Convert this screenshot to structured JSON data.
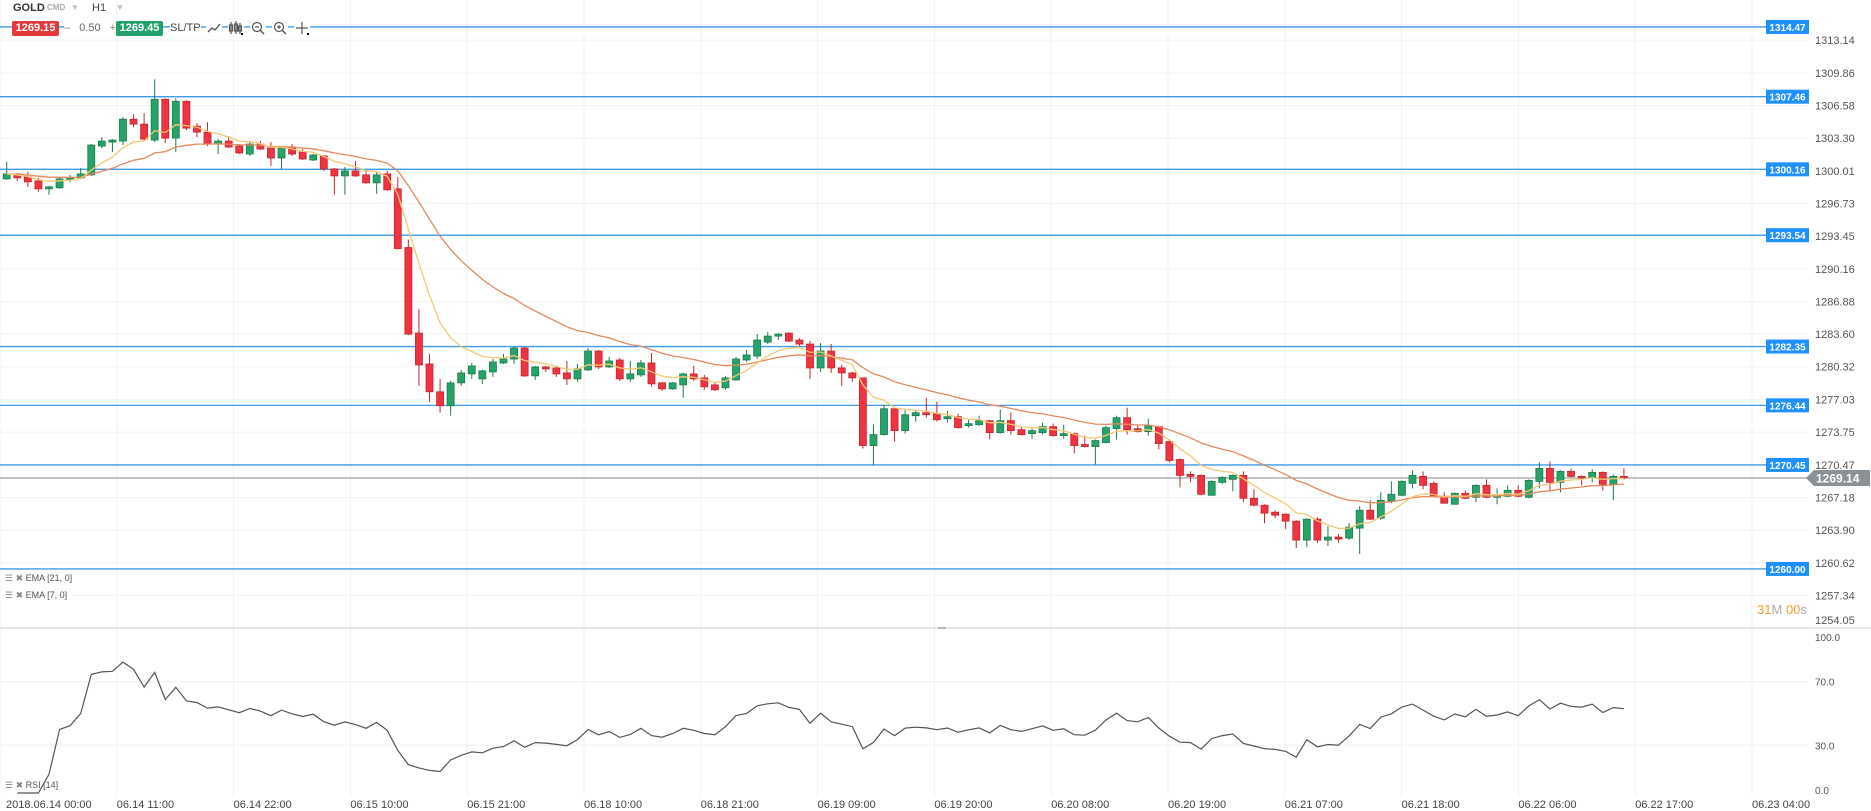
{
  "toolbar": {
    "symbol": "GOLD",
    "instrument_type": "CMD",
    "timeframe": "H1",
    "bid": "1269.15",
    "spread_minus": "–",
    "spread": "0.50",
    "spread_plus": "+",
    "ask": "1269.45",
    "sltp": "SL/TP",
    "icons": [
      "line-chart-icon",
      "candlestick-icon",
      "zoom-out-icon",
      "zoom-in-icon",
      "crosshair-icon"
    ]
  },
  "indicators": {
    "ema_slow": "EMA [21, 0]",
    "ema_fast": "EMA [7, 0]",
    "rsi": "RSI [14]"
  },
  "countdown": {
    "minutes": "31",
    "minutes_unit": "M",
    "seconds": "00",
    "seconds_unit": "s"
  },
  "colors": {
    "bull": "#26a369",
    "bear": "#ef3340",
    "ema_fast": "#f7c873",
    "ema_slow": "#e38a5e",
    "price_line": "#3d9be9",
    "price_tag": "#1e90ff",
    "current_price": "#8a9197",
    "rsi": "#555555",
    "countdown": "#f0a030"
  },
  "chart_data": {
    "type": "candlestick",
    "symbol": "GOLD",
    "timeframe": "H1",
    "ohlc_format": [
      "open",
      "high",
      "low",
      "close"
    ],
    "candles": [
      [
        1299.2,
        1300.9,
        1299.1,
        1299.7
      ],
      [
        1299.7,
        1299.8,
        1299.0,
        1299.3
      ],
      [
        1299.4,
        1299.9,
        1298.4,
        1298.9
      ],
      [
        1299.0,
        1299.3,
        1297.9,
        1298.2
      ],
      [
        1298.2,
        1298.5,
        1297.6,
        1298.4
      ],
      [
        1298.3,
        1299.4,
        1298.2,
        1299.2
      ],
      [
        1299.2,
        1299.6,
        1298.9,
        1299.3
      ],
      [
        1299.3,
        1300.3,
        1299.2,
        1299.7
      ],
      [
        1299.6,
        1302.7,
        1299.5,
        1302.6
      ],
      [
        1302.5,
        1303.4,
        1302.3,
        1303.0
      ],
      [
        1302.9,
        1303.2,
        1301.9,
        1303.1
      ],
      [
        1303.0,
        1305.4,
        1302.6,
        1305.2
      ],
      [
        1305.2,
        1305.7,
        1304.4,
        1304.7
      ],
      [
        1304.7,
        1305.8,
        1303.1,
        1303.2
      ],
      [
        1303.1,
        1309.2,
        1302.9,
        1307.2
      ],
      [
        1307.2,
        1307.3,
        1302.8,
        1303.3
      ],
      [
        1303.3,
        1307.3,
        1301.9,
        1307.0
      ],
      [
        1307.0,
        1307.1,
        1304.1,
        1304.3
      ],
      [
        1304.5,
        1304.8,
        1303.4,
        1303.9
      ],
      [
        1303.9,
        1304.9,
        1302.5,
        1302.7
      ],
      [
        1302.7,
        1303.2,
        1301.7,
        1303.0
      ],
      [
        1303.0,
        1303.5,
        1302.3,
        1302.4
      ],
      [
        1302.5,
        1302.7,
        1301.7,
        1301.8
      ],
      [
        1301.7,
        1302.9,
        1301.5,
        1302.7
      ],
      [
        1302.7,
        1303.0,
        1302.1,
        1302.2
      ],
      [
        1302.3,
        1302.9,
        1300.5,
        1301.3
      ],
      [
        1301.3,
        1302.5,
        1300.2,
        1302.4
      ],
      [
        1302.4,
        1302.7,
        1301.5,
        1301.7
      ],
      [
        1301.9,
        1302.2,
        1301.1,
        1301.2
      ],
      [
        1301.1,
        1301.7,
        1301.0,
        1301.6
      ],
      [
        1301.5,
        1301.6,
        1300.0,
        1300.2
      ],
      [
        1300.2,
        1300.3,
        1297.6,
        1299.5
      ],
      [
        1299.5,
        1300.4,
        1297.6,
        1300.0
      ],
      [
        1300.0,
        1301.0,
        1299.4,
        1299.5
      ],
      [
        1299.6,
        1300.1,
        1298.7,
        1298.8
      ],
      [
        1298.8,
        1299.9,
        1297.7,
        1299.6
      ],
      [
        1299.7,
        1300.0,
        1298.0,
        1298.1
      ],
      [
        1298.2,
        1299.4,
        1292.1,
        1292.2
      ],
      [
        1292.3,
        1293.1,
        1283.5,
        1283.6
      ],
      [
        1283.7,
        1286.1,
        1278.4,
        1280.5
      ],
      [
        1280.6,
        1281.6,
        1276.8,
        1277.8
      ],
      [
        1277.8,
        1279.1,
        1275.7,
        1276.4
      ],
      [
        1276.4,
        1278.9,
        1275.4,
        1278.7
      ],
      [
        1278.7,
        1280.0,
        1278.4,
        1279.7
      ],
      [
        1279.6,
        1280.7,
        1279.1,
        1280.4
      ],
      [
        1279.1,
        1280.0,
        1278.6,
        1279.9
      ],
      [
        1279.8,
        1281.1,
        1279.3,
        1280.8
      ],
      [
        1280.7,
        1281.6,
        1280.6,
        1281.1
      ],
      [
        1281.1,
        1282.3,
        1280.6,
        1282.2
      ],
      [
        1282.2,
        1282.3,
        1279.3,
        1279.4
      ],
      [
        1279.4,
        1280.4,
        1279.0,
        1280.3
      ],
      [
        1280.3,
        1280.4,
        1279.8,
        1280.1
      ],
      [
        1280.2,
        1280.4,
        1279.3,
        1279.6
      ],
      [
        1279.7,
        1280.9,
        1278.5,
        1279.1
      ],
      [
        1279.1,
        1280.6,
        1278.8,
        1280.1
      ],
      [
        1280.0,
        1282.2,
        1279.9,
        1281.9
      ],
      [
        1281.9,
        1282.0,
        1280.1,
        1280.3
      ],
      [
        1280.3,
        1281.3,
        1280.2,
        1280.9
      ],
      [
        1281.0,
        1281.2,
        1278.9,
        1279.1
      ],
      [
        1279.1,
        1280.9,
        1278.8,
        1279.6
      ],
      [
        1279.5,
        1281.0,
        1279.3,
        1280.7
      ],
      [
        1280.7,
        1281.7,
        1278.3,
        1278.6
      ],
      [
        1278.7,
        1278.8,
        1277.9,
        1278.1
      ],
      [
        1278.1,
        1278.8,
        1278.0,
        1278.7
      ],
      [
        1278.5,
        1279.7,
        1277.2,
        1279.6
      ],
      [
        1279.6,
        1280.4,
        1278.9,
        1279.1
      ],
      [
        1279.2,
        1279.5,
        1278.0,
        1278.3
      ],
      [
        1278.5,
        1278.7,
        1277.9,
        1278.0
      ],
      [
        1278.2,
        1279.4,
        1278.0,
        1279.2
      ],
      [
        1279.0,
        1281.3,
        1278.9,
        1281.1
      ],
      [
        1281.0,
        1282.0,
        1280.8,
        1281.5
      ],
      [
        1281.4,
        1283.6,
        1281.1,
        1283.0
      ],
      [
        1282.8,
        1283.8,
        1282.6,
        1283.4
      ],
      [
        1283.4,
        1283.7,
        1283.0,
        1283.6
      ],
      [
        1283.7,
        1283.8,
        1282.8,
        1282.9
      ],
      [
        1283.0,
        1283.2,
        1282.2,
        1282.6
      ],
      [
        1282.6,
        1282.9,
        1279.1,
        1280.2
      ],
      [
        1280.2,
        1282.7,
        1279.8,
        1281.9
      ],
      [
        1281.9,
        1282.6,
        1279.7,
        1280.2
      ],
      [
        1280.2,
        1280.5,
        1278.4,
        1279.7
      ],
      [
        1279.7,
        1279.8,
        1278.8,
        1279.2
      ],
      [
        1279.2,
        1279.2,
        1272.1,
        1272.4
      ],
      [
        1272.4,
        1274.5,
        1270.4,
        1273.5
      ],
      [
        1273.5,
        1276.5,
        1273.4,
        1276.1
      ],
      [
        1276.1,
        1276.2,
        1272.8,
        1273.9
      ],
      [
        1273.9,
        1276.1,
        1273.6,
        1275.5
      ],
      [
        1275.4,
        1276.0,
        1274.8,
        1275.7
      ],
      [
        1275.7,
        1277.2,
        1275.2,
        1275.5
      ],
      [
        1275.6,
        1276.8,
        1274.8,
        1275.0
      ],
      [
        1275.1,
        1275.9,
        1274.7,
        1275.3
      ],
      [
        1275.3,
        1275.6,
        1274.1,
        1274.2
      ],
      [
        1274.4,
        1275.1,
        1274.2,
        1274.6
      ],
      [
        1274.5,
        1275.4,
        1274.4,
        1274.9
      ],
      [
        1274.9,
        1275.0,
        1273.0,
        1273.7
      ],
      [
        1273.7,
        1276.0,
        1273.6,
        1274.9
      ],
      [
        1274.9,
        1275.7,
        1273.5,
        1273.9
      ],
      [
        1274.0,
        1274.3,
        1273.4,
        1273.5
      ],
      [
        1273.6,
        1274.2,
        1273.1,
        1273.9
      ],
      [
        1273.7,
        1274.7,
        1273.5,
        1274.3
      ],
      [
        1274.3,
        1274.6,
        1273.3,
        1273.4
      ],
      [
        1273.4,
        1274.5,
        1273.1,
        1273.6
      ],
      [
        1273.6,
        1273.7,
        1271.6,
        1272.4
      ],
      [
        1272.5,
        1273.4,
        1272.2,
        1272.3
      ],
      [
        1272.3,
        1273.0,
        1270.5,
        1272.9
      ],
      [
        1272.7,
        1274.4,
        1272.6,
        1274.2
      ],
      [
        1274.1,
        1275.4,
        1273.0,
        1275.2
      ],
      [
        1275.2,
        1276.2,
        1273.5,
        1274.0
      ],
      [
        1274.1,
        1274.5,
        1273.7,
        1273.8
      ],
      [
        1273.8,
        1275.1,
        1273.4,
        1274.4
      ],
      [
        1274.3,
        1274.4,
        1272.0,
        1272.6
      ],
      [
        1272.8,
        1273.0,
        1270.7,
        1270.9
      ],
      [
        1271.0,
        1271.1,
        1268.2,
        1269.4
      ],
      [
        1269.5,
        1269.8,
        1268.7,
        1269.3
      ],
      [
        1269.4,
        1269.5,
        1267.4,
        1267.5
      ],
      [
        1267.4,
        1268.9,
        1267.4,
        1268.8
      ],
      [
        1268.7,
        1269.3,
        1268.5,
        1269.2
      ],
      [
        1269.0,
        1269.5,
        1267.8,
        1269.4
      ],
      [
        1269.4,
        1269.8,
        1266.7,
        1267.1
      ],
      [
        1267.1,
        1268.0,
        1266.3,
        1266.4
      ],
      [
        1266.4,
        1266.5,
        1264.6,
        1265.6
      ],
      [
        1265.7,
        1265.9,
        1265.1,
        1265.4
      ],
      [
        1265.5,
        1265.6,
        1264.0,
        1264.8
      ],
      [
        1264.8,
        1264.9,
        1262.1,
        1262.9
      ],
      [
        1262.9,
        1265.1,
        1262.2,
        1265.0
      ],
      [
        1265.0,
        1265.2,
        1262.6,
        1262.9
      ],
      [
        1262.9,
        1264.3,
        1262.3,
        1263.2
      ],
      [
        1263.2,
        1263.5,
        1262.6,
        1263.0
      ],
      [
        1263.1,
        1264.6,
        1262.9,
        1264.2
      ],
      [
        1264.1,
        1266.3,
        1261.5,
        1265.9
      ],
      [
        1265.9,
        1266.9,
        1264.9,
        1265.0
      ],
      [
        1265.1,
        1267.7,
        1264.9,
        1266.9
      ],
      [
        1266.8,
        1268.8,
        1266.6,
        1267.5
      ],
      [
        1267.4,
        1268.9,
        1267.3,
        1268.8
      ],
      [
        1268.6,
        1269.9,
        1268.1,
        1269.4
      ],
      [
        1269.3,
        1269.8,
        1268.0,
        1268.4
      ],
      [
        1268.6,
        1268.8,
        1267.2,
        1267.3
      ],
      [
        1267.3,
        1267.7,
        1266.6,
        1266.6
      ],
      [
        1266.5,
        1267.7,
        1266.5,
        1267.6
      ],
      [
        1267.6,
        1267.9,
        1267.0,
        1267.1
      ],
      [
        1267.2,
        1268.5,
        1266.7,
        1268.4
      ],
      [
        1268.4,
        1269.0,
        1267.1,
        1267.2
      ],
      [
        1267.2,
        1268.1,
        1266.5,
        1267.4
      ],
      [
        1267.3,
        1268.4,
        1267.2,
        1267.9
      ],
      [
        1267.9,
        1268.4,
        1267.2,
        1267.3
      ],
      [
        1267.2,
        1269.0,
        1267.1,
        1268.9
      ],
      [
        1268.8,
        1270.7,
        1268.1,
        1270.1
      ],
      [
        1270.1,
        1270.8,
        1267.8,
        1268.7
      ],
      [
        1268.7,
        1269.9,
        1267.7,
        1269.8
      ],
      [
        1269.8,
        1270.1,
        1269.2,
        1269.3
      ],
      [
        1269.3,
        1269.4,
        1268.4,
        1269.2
      ],
      [
        1269.2,
        1270.0,
        1268.7,
        1269.7
      ],
      [
        1269.7,
        1269.8,
        1267.9,
        1268.5
      ],
      [
        1268.5,
        1269.5,
        1266.9,
        1269.3
      ],
      [
        1269.3,
        1270.1,
        1269.0,
        1269.14
      ]
    ],
    "ema_periods": [
      21,
      7
    ],
    "rsi_period": 14,
    "price_ticks": [
      "1313.14",
      "1309.86",
      "1306.58",
      "1303.30",
      "1300.01",
      "1296.73",
      "1293.45",
      "1290.16",
      "1286.88",
      "1283.60",
      "1280.32",
      "1277.03",
      "1273.75",
      "1270.47",
      "1267.18",
      "1263.90",
      "1260.62",
      "1257.34",
      "1254.05"
    ],
    "price_lines": [
      "1314.47",
      "1307.46",
      "1300.16",
      "1293.54",
      "1282.35",
      "1276.44",
      "1270.45",
      "1260.00"
    ],
    "current_price": "1269.14",
    "time_labels": [
      "2018.06.14 00:00",
      "06.14 11:00",
      "06.14 22:00",
      "06.15 10:00",
      "06.15 21:00",
      "06.18 10:00",
      "06.18 21:00",
      "06.19 09:00",
      "06.19 20:00",
      "06.20 08:00",
      "06.20 19:00",
      "06.21 07:00",
      "06.21 18:00",
      "06.22 06:00",
      "06.22 17:00",
      "06.23 04:00"
    ],
    "rsi_ticks": [
      "100.0",
      "70.0",
      "30.0",
      "0.0"
    ],
    "rsi_ylim": [
      0,
      100
    ],
    "grid": true
  }
}
